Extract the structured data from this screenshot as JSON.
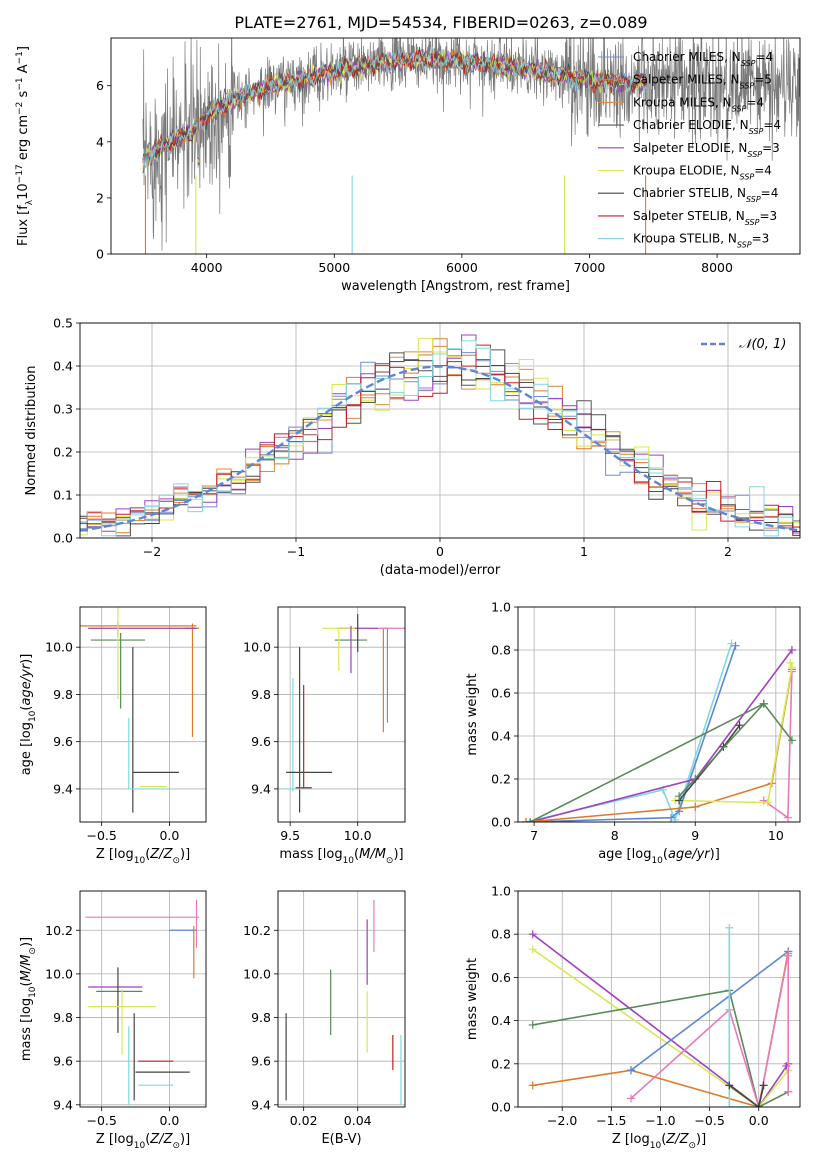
{
  "figure_title": "PLATE=2761, MJD=54534, FIBERID=0263, z=0.089",
  "chart_data": [
    {
      "id": "spectrum",
      "type": "line",
      "xlabel": "wavelength [Angstrom, rest frame]",
      "ylabel": "Flux [f_λ 10^-17 erg cm^-2 s^-1 A^-1]",
      "xlim": [
        3250,
        8650
      ],
      "ylim": [
        0,
        7.7
      ],
      "xticks": [
        4000,
        5000,
        6000,
        7000,
        8000
      ],
      "yticks": [
        0,
        2,
        4,
        6
      ],
      "grid": false,
      "legend": "upper right",
      "data_anchors": [
        {
          "wavelength": 3500,
          "flux": 3.3
        },
        {
          "wavelength": 3700,
          "flux": 4.0
        },
        {
          "wavelength": 3900,
          "flux": 4.4
        },
        {
          "wavelength": 4100,
          "flux": 5.3
        },
        {
          "wavelength": 4500,
          "flux": 6.0
        },
        {
          "wavelength": 5000,
          "flux": 6.5
        },
        {
          "wavelength": 5500,
          "flux": 6.9
        },
        {
          "wavelength": 6000,
          "flux": 6.9
        },
        {
          "wavelength": 6500,
          "flux": 6.6
        },
        {
          "wavelength": 7000,
          "flux": 6.2
        },
        {
          "wavelength": 7400,
          "flux": 6.1
        }
      ],
      "observed_extent": [
        3500,
        9200
      ],
      "series": [
        {
          "name": "Chabrier MILES, N_SSP=4",
          "color": "#6b8fd6"
        },
        {
          "name": "Salpeter MILES, N_SSP=5",
          "color": "#e07a2a"
        },
        {
          "name": "Kroupa MILES, N_SSP=4",
          "color": "#e08a3a"
        },
        {
          "name": "Chabrier ELODIE, N_SSP=4",
          "color": "#555555"
        },
        {
          "name": "Salpeter ELODIE, N_SSP=3",
          "color": "#a040c0"
        },
        {
          "name": "Kroupa ELODIE, N_SSP=4",
          "color": "#d8e850"
        },
        {
          "name": "Chabrier STELIB, N_SSP=4",
          "color": "#444444"
        },
        {
          "name": "Salpeter STELIB, N_SSP=3",
          "color": "#c02020"
        },
        {
          "name": "Kroupa STELIB, N_SSP=3",
          "color": "#80d8e0"
        }
      ]
    },
    {
      "id": "residuals",
      "type": "line",
      "xlabel": "(data-model)/error",
      "ylabel": "Normed distribution",
      "xlim": [
        -2.5,
        2.5
      ],
      "ylim": [
        0,
        0.5
      ],
      "xticks": [
        -2,
        -1,
        0,
        1,
        2
      ],
      "yticks": [
        0.0,
        0.1,
        0.2,
        0.3,
        0.4,
        0.5
      ],
      "grid": true,
      "legend": "upper right",
      "gaussian_label": "N(0,1)",
      "gaussian_color": "#5b87d6",
      "hist_colors": [
        "#6b8fd6",
        "#e07a2a",
        "#e08a3a",
        "#555555",
        "#a040c0",
        "#d8e850",
        "#444444",
        "#c02020",
        "#80d8e0"
      ]
    },
    {
      "id": "age_vs_Z",
      "type": "scatter",
      "xlabel": "Z [log10(Z/Z⊙)]",
      "ylabel": "age [log10(age/yr)]",
      "xlim": [
        -0.66,
        0.27
      ],
      "ylim": [
        9.26,
        10.17
      ],
      "xticks": [
        -0.5,
        0.0
      ],
      "yticks": [
        9.4,
        9.6,
        9.8,
        10.0
      ],
      "grid": true,
      "points": [
        {
          "x": 0.17,
          "y": 10.08,
          "xerr": 0.05,
          "yerr": 0.0,
          "color": "#e07a2a"
        },
        {
          "x": 0.17,
          "y": 9.86,
          "xerr": 0.0,
          "yerr": 0.24,
          "color": "#e07a2a"
        },
        {
          "x": -0.38,
          "y": 10.08,
          "xerr": 0.0,
          "yerr": 0.03,
          "color": "#444444"
        },
        {
          "x": -0.38,
          "y": 10.03,
          "xerr": 0.2,
          "yerr": 0.0,
          "color": "#5a8a5a"
        },
        {
          "x": -0.2,
          "y": 10.08,
          "xerr": 0.4,
          "yerr": 0.0,
          "color": "#a040c0"
        },
        {
          "x": -0.3,
          "y": 10.09,
          "xerr": 0.5,
          "yerr": 0.0,
          "color": "#e07a2a"
        },
        {
          "x": -0.38,
          "y": 9.98,
          "xerr": 0.0,
          "yerr": 0.2,
          "color": "#d8e850"
        },
        {
          "x": -0.36,
          "y": 9.9,
          "xerr": 0.0,
          "yerr": 0.16,
          "color": "#5a8a5a"
        },
        {
          "x": -0.27,
          "y": 9.65,
          "xerr": 0.0,
          "yerr": 0.35,
          "color": "#444444"
        },
        {
          "x": -0.3,
          "y": 9.55,
          "xerr": 0.0,
          "yerr": 0.15,
          "color": "#80d8e0"
        },
        {
          "x": -0.1,
          "y": 9.47,
          "xerr": 0.17,
          "yerr": 0.0,
          "color": "#444444"
        },
        {
          "x": -0.15,
          "y": 9.4,
          "xerr": 0.15,
          "yerr": 0.0,
          "color": "#80d8e0"
        },
        {
          "x": -0.12,
          "y": 9.41,
          "xerr": 0.1,
          "yerr": 0.0,
          "color": "#d8e850"
        }
      ]
    },
    {
      "id": "age_vs_mass",
      "type": "scatter",
      "xlabel": "mass [log10(M/M⊙)]",
      "ylabel": "",
      "xlim": [
        9.41,
        10.35
      ],
      "ylim": [
        9.26,
        10.17
      ],
      "xticks": [
        9.5,
        10.0
      ],
      "yticks": [
        9.4,
        9.6,
        9.8,
        10.0
      ],
      "grid": true,
      "points": [
        {
          "x": 10.2,
          "y": 10.08,
          "xerr": 0.03,
          "yerr": 0.0,
          "color": "#e07a2a"
        },
        {
          "x": 10.19,
          "y": 9.86,
          "xerr": 0.0,
          "yerr": 0.22,
          "color": "#e07a2a"
        },
        {
          "x": 10.22,
          "y": 9.88,
          "xerr": 0.0,
          "yerr": 0.2,
          "color": "#6b8fd6"
        },
        {
          "x": 10.25,
          "y": 10.08,
          "xerr": 0.1,
          "yerr": 0.0,
          "color": "#e87ab8"
        },
        {
          "x": 10.0,
          "y": 10.08,
          "xerr": 0.15,
          "yerr": 0.0,
          "color": "#a040c0"
        },
        {
          "x": 9.95,
          "y": 10.03,
          "xerr": 0.12,
          "yerr": 0.0,
          "color": "#5a8a5a"
        },
        {
          "x": 10.0,
          "y": 10.06,
          "xerr": 0.0,
          "yerr": 0.08,
          "color": "#444444"
        },
        {
          "x": 9.86,
          "y": 10.08,
          "xerr": 0.12,
          "yerr": 0.0,
          "color": "#d8e850"
        },
        {
          "x": 9.95,
          "y": 9.99,
          "xerr": 0.0,
          "yerr": 0.1,
          "color": "#a040c0"
        },
        {
          "x": 9.86,
          "y": 9.99,
          "xerr": 0.0,
          "yerr": 0.09,
          "color": "#d8e850"
        },
        {
          "x": 9.57,
          "y": 9.65,
          "xerr": 0.0,
          "yerr": 0.35,
          "color": "#444444"
        },
        {
          "x": 9.6,
          "y": 9.62,
          "xerr": 0.0,
          "yerr": 0.22,
          "color": "#c02020"
        },
        {
          "x": 9.52,
          "y": 9.63,
          "xerr": 0.0,
          "yerr": 0.24,
          "color": "#80d8e0"
        },
        {
          "x": 9.64,
          "y": 9.47,
          "xerr": 0.17,
          "yerr": 0.0,
          "color": "#444444"
        },
        {
          "x": 9.55,
          "y": 9.4,
          "xerr": 0.1,
          "yerr": 0.0,
          "color": "#80d8e0"
        },
        {
          "x": 9.6,
          "y": 9.405,
          "xerr": 0.06,
          "yerr": 0.0,
          "color": "#c02020"
        }
      ]
    },
    {
      "id": "massweight_vs_age",
      "type": "line",
      "xlabel": "age [log10(age/yr)]",
      "ylabel": "mass weight",
      "xlim": [
        6.8,
        10.3
      ],
      "ylim": [
        0,
        1.0
      ],
      "xticks": [
        7,
        8,
        9,
        10
      ],
      "yticks": [
        0.0,
        0.2,
        0.4,
        0.6,
        0.8,
        1.0
      ],
      "grid": true,
      "series": [
        {
          "color": "#80d8e0",
          "x": [
            6.9,
            8.6,
            8.75,
            9.45
          ],
          "y": [
            0.0,
            0.15,
            0.01,
            0.83
          ]
        },
        {
          "color": "#5b87d6",
          "x": [
            6.9,
            8.7,
            8.8,
            9.5
          ],
          "y": [
            0.0,
            0.02,
            0.05,
            0.82
          ]
        },
        {
          "color": "#a040c0",
          "x": [
            6.95,
            9.0,
            10.2
          ],
          "y": [
            0.0,
            0.2,
            0.8
          ]
        },
        {
          "color": "#e07a2a",
          "x": [
            6.9,
            9.0,
            9.95,
            10.2
          ],
          "y": [
            0.0,
            0.07,
            0.18,
            0.71
          ]
        },
        {
          "color": "#e87ab8",
          "x": [
            9.85,
            10.15,
            10.2
          ],
          "y": [
            0.1,
            0.02,
            0.7
          ]
        },
        {
          "color": "#d8e850",
          "x": [
            8.75,
            9.9,
            10.2,
            10.18
          ],
          "y": [
            0.1,
            0.09,
            0.72,
            0.74
          ]
        },
        {
          "color": "#444444",
          "x": [
            8.8,
            9.35,
            9.55
          ],
          "y": [
            0.1,
            0.35,
            0.45
          ]
        },
        {
          "color": "#5a8a5a",
          "x": [
            6.95,
            9.85,
            10.2
          ],
          "y": [
            0.0,
            0.55,
            0.38
          ]
        },
        {
          "color": "#5a8a5a",
          "x": [
            8.8,
            9.85
          ],
          "y": [
            0.12,
            0.55
          ]
        }
      ]
    },
    {
      "id": "mass_vs_Z",
      "type": "scatter",
      "xlabel": "Z [log10(Z/Z⊙)]",
      "ylabel": "mass [log10(M/M⊙)]",
      "xlim": [
        -0.66,
        0.27
      ],
      "ylim": [
        9.39,
        10.38
      ],
      "xticks": [
        -0.5,
        0.0
      ],
      "yticks": [
        9.4,
        9.6,
        9.8,
        10.0,
        10.2
      ],
      "grid": true,
      "points": [
        {
          "x": -0.2,
          "y": 10.26,
          "xerr": 0.42,
          "yerr": 0.0,
          "color": "#e87ab8"
        },
        {
          "x": 0.2,
          "y": 10.23,
          "xerr": 0.0,
          "yerr": 0.11,
          "color": "#e87ab8"
        },
        {
          "x": 0.1,
          "y": 10.2,
          "xerr": 0.1,
          "yerr": 0.0,
          "color": "#5b87d6"
        },
        {
          "x": 0.18,
          "y": 10.1,
          "xerr": 0.0,
          "yerr": 0.12,
          "color": "#e07a2a"
        },
        {
          "x": -0.4,
          "y": 9.94,
          "xerr": 0.2,
          "yerr": 0.0,
          "color": "#a040c0"
        },
        {
          "x": -0.37,
          "y": 9.92,
          "xerr": 0.17,
          "yerr": 0.0,
          "color": "#5a8a5a"
        },
        {
          "x": -0.38,
          "y": 9.88,
          "xerr": 0.0,
          "yerr": 0.15,
          "color": "#444444"
        },
        {
          "x": -0.35,
          "y": 9.85,
          "xerr": 0.25,
          "yerr": 0.0,
          "color": "#d8e850"
        },
        {
          "x": -0.35,
          "y": 9.78,
          "xerr": 0.0,
          "yerr": 0.15,
          "color": "#d8e850"
        },
        {
          "x": -0.26,
          "y": 9.62,
          "xerr": 0.0,
          "yerr": 0.2,
          "color": "#444444"
        },
        {
          "x": -0.3,
          "y": 9.58,
          "xerr": 0.0,
          "yerr": 0.18,
          "color": "#80d8e0"
        },
        {
          "x": -0.1,
          "y": 9.6,
          "xerr": 0.13,
          "yerr": 0.0,
          "color": "#c02020"
        },
        {
          "x": -0.05,
          "y": 9.55,
          "xerr": 0.2,
          "yerr": 0.0,
          "color": "#444444"
        },
        {
          "x": -0.1,
          "y": 9.49,
          "xerr": 0.13,
          "yerr": 0.0,
          "color": "#80d8e0"
        }
      ]
    },
    {
      "id": "mass_vs_ebv",
      "type": "scatter",
      "xlabel": "E(B-V)",
      "ylabel": "",
      "xlim": [
        0.0105,
        0.0575
      ],
      "ylim": [
        9.39,
        10.38
      ],
      "xticks": [
        0.02,
        0.04
      ],
      "yticks": [
        9.4,
        9.6,
        9.8,
        10.0,
        10.2
      ],
      "grid": true,
      "points": [
        {
          "x": 0.0135,
          "y": 9.62,
          "xerr": 0.0,
          "yerr": 0.2,
          "color": "#444444"
        },
        {
          "x": 0.03,
          "y": 9.87,
          "xerr": 0.0,
          "yerr": 0.15,
          "color": "#5a8a5a"
        },
        {
          "x": 0.0435,
          "y": 10.1,
          "xerr": 0.0,
          "yerr": 0.15,
          "color": "#a040c0"
        },
        {
          "x": 0.0435,
          "y": 9.78,
          "xerr": 0.0,
          "yerr": 0.14,
          "color": "#d8e850"
        },
        {
          "x": 0.046,
          "y": 10.22,
          "xerr": 0.0,
          "yerr": 0.12,
          "color": "#e87ab8"
        },
        {
          "x": 0.053,
          "y": 9.64,
          "xerr": 0.0,
          "yerr": 0.08,
          "color": "#c02020"
        },
        {
          "x": 0.056,
          "y": 9.56,
          "xerr": 0.0,
          "yerr": 0.16,
          "color": "#80d8e0"
        }
      ]
    },
    {
      "id": "massweight_vs_Z",
      "type": "line",
      "xlabel": "Z [log10(Z/Z⊙)]",
      "ylabel": "mass weight",
      "xlim": [
        -2.45,
        0.42
      ],
      "ylim": [
        0,
        1.0
      ],
      "xticks": [
        -2.0,
        -1.5,
        -1.0,
        -0.5,
        0.0
      ],
      "yticks": [
        0.0,
        0.2,
        0.4,
        0.6,
        0.8,
        1.0
      ],
      "grid": true,
      "series": [
        {
          "color": "#a040c0",
          "x": [
            -2.3,
            0.0,
            0.3,
            0.28
          ],
          "y": [
            0.8,
            0.0,
            0.2,
            0.19
          ]
        },
        {
          "color": "#d8e850",
          "x": [
            -2.3,
            0.0,
            0.3
          ],
          "y": [
            0.73,
            0.0,
            0.17
          ]
        },
        {
          "color": "#5a8a5a",
          "x": [
            -2.3,
            -0.3,
            0.0,
            0.3
          ],
          "y": [
            0.38,
            0.54,
            0.0,
            0.07
          ]
        },
        {
          "color": "#e07a2a",
          "x": [
            -2.3,
            -1.3,
            0.0,
            0.3,
            0.3
          ],
          "y": [
            0.1,
            0.17,
            0.0,
            0.72,
            0.7
          ]
        },
        {
          "color": "#5b87d6",
          "x": [
            -1.3,
            0.3
          ],
          "y": [
            0.17,
            0.72
          ]
        },
        {
          "color": "#e87ab8",
          "x": [
            -1.3,
            -0.3,
            0.0,
            0.3,
            0.3
          ],
          "y": [
            0.04,
            0.45,
            0.0,
            0.71,
            0.07
          ]
        },
        {
          "color": "#80d8e0",
          "x": [
            -0.3,
            -0.3,
            0.0
          ],
          "y": [
            0.83,
            0.0,
            0.0
          ]
        },
        {
          "color": "#444444",
          "x": [
            -0.3,
            0.0,
            0.05
          ],
          "y": [
            0.1,
            0.0,
            0.1
          ]
        }
      ]
    }
  ]
}
